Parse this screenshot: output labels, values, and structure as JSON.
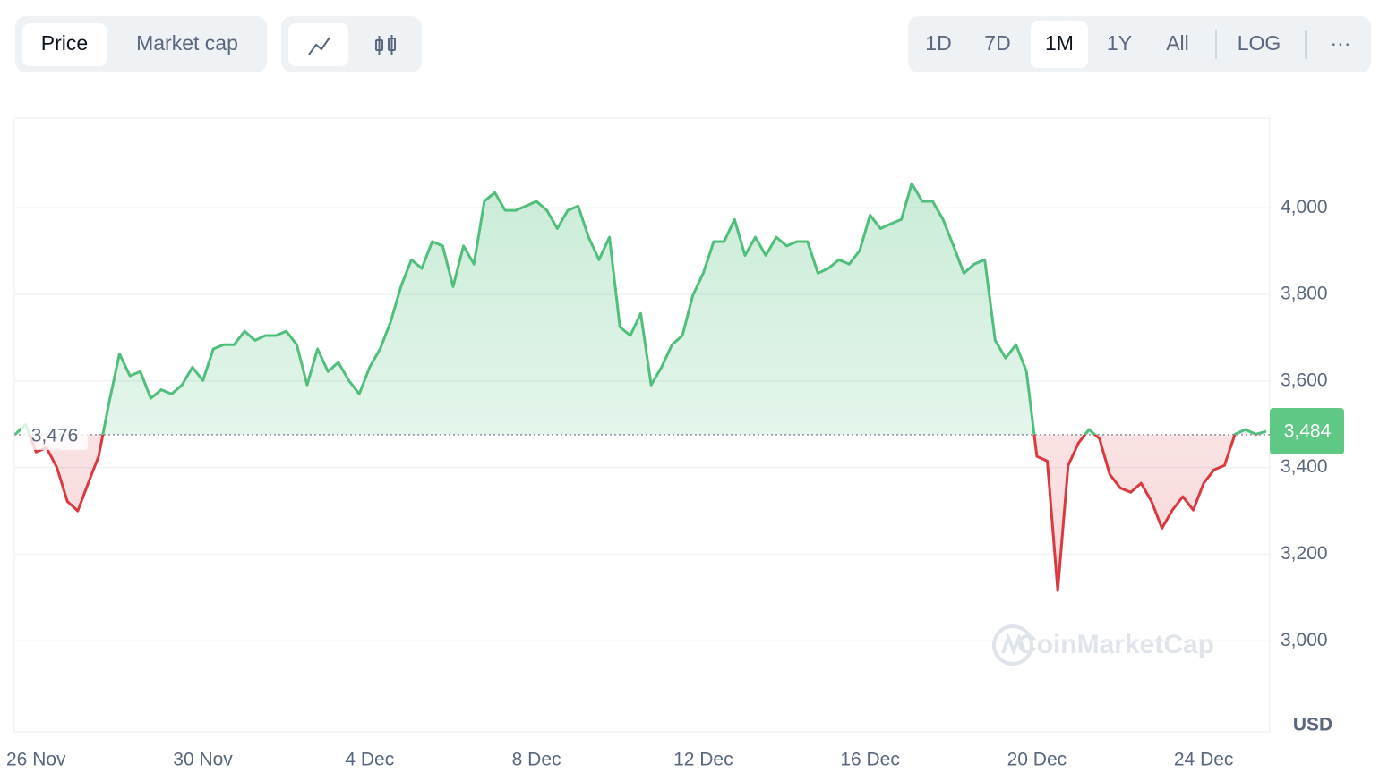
{
  "controls": {
    "views": [
      "Price",
      "Market cap"
    ],
    "active_view": 0,
    "ranges": [
      "1D",
      "7D",
      "1M",
      "1Y",
      "All"
    ],
    "active_range": 2,
    "scale": "LOG",
    "more": "···"
  },
  "chart_data": {
    "type": "line",
    "categories": [
      null,
      null,
      "26 Nov",
      null,
      null,
      null,
      null,
      null,
      null,
      null,
      null,
      null,
      null,
      null,
      null,
      null,
      null,
      null,
      "30 Nov",
      null,
      null,
      null,
      null,
      null,
      null,
      null,
      null,
      null,
      null,
      null,
      null,
      null,
      null,
      null,
      "4 Dec",
      null,
      null,
      null,
      null,
      null,
      null,
      null,
      null,
      null,
      null,
      null,
      null,
      null,
      null,
      null,
      "8 Dec",
      null,
      null,
      null,
      null,
      null,
      null,
      null,
      null,
      null,
      null,
      null,
      null,
      null,
      null,
      null,
      "12 Dec",
      null,
      null,
      null,
      null,
      null,
      null,
      null,
      null,
      null,
      null,
      null,
      null,
      null,
      null,
      null,
      "16 Dec",
      null,
      null,
      null,
      null,
      null,
      null,
      null,
      null,
      null,
      null,
      null,
      null,
      null,
      null,
      null,
      "20 Dec",
      null,
      null,
      null,
      null,
      null,
      null,
      null,
      null,
      null,
      null,
      null,
      null,
      null,
      null,
      null,
      "24 Dec",
      null,
      null,
      null,
      null,
      null,
      null
    ],
    "values": [
      3477,
      3500,
      3436,
      3446,
      3400,
      3322,
      3300,
      3364,
      3426,
      3550,
      3663,
      3612,
      3622,
      3560,
      3580,
      3570,
      3591,
      3632,
      3601,
      3674,
      3684,
      3684,
      3715,
      3694,
      3705,
      3705,
      3715,
      3684,
      3591,
      3674,
      3622,
      3643,
      3601,
      3570,
      3632,
      3674,
      3736,
      3818,
      3880,
      3860,
      3922,
      3912,
      3818,
      3912,
      3870,
      4015,
      4035,
      3994,
      3994,
      4004,
      4015,
      3994,
      3952,
      3994,
      4004,
      3932,
      3880,
      3932,
      3725,
      3705,
      3756,
      3591,
      3632,
      3684,
      3705,
      3798,
      3849,
      3922,
      3922,
      3973,
      3890,
      3932,
      3890,
      3932,
      3912,
      3922,
      3922,
      3849,
      3860,
      3880,
      3870,
      3901,
      3983,
      3952,
      3963,
      3973,
      4056,
      4015,
      4015,
      3973,
      3912,
      3849,
      3870,
      3880,
      3694,
      3653,
      3684,
      3622,
      3426,
      3415,
      3116,
      3405,
      3457,
      3488,
      3467,
      3384,
      3353,
      3343,
      3364,
      3322,
      3260,
      3302,
      3333,
      3302,
      3364,
      3395,
      3405,
      3477,
      3488,
      3477,
      3484
    ],
    "colors": {
      "up": "#4fbf7b",
      "down": "#d9393f"
    },
    "baseline": {
      "value": 3476,
      "label": "3,476"
    },
    "current": {
      "value": 3484,
      "label": "3,484"
    },
    "ylim": [
      2790,
      4207
    ],
    "yticks": [
      {
        "value": 3000,
        "label": "3,000"
      },
      {
        "value": 3200,
        "label": "3,200"
      },
      {
        "value": 3400,
        "label": "3,400"
      },
      {
        "value": 3600,
        "label": "3,600"
      },
      {
        "value": 3800,
        "label": "3,800"
      },
      {
        "value": 4000,
        "label": "4,000"
      }
    ],
    "y_unit": "USD",
    "grid": true,
    "watermark": "CoinMarketCap"
  }
}
